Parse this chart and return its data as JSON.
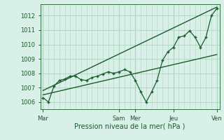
{
  "bg_color": "#d8f0e8",
  "plot_bg_color": "#d8f0e8",
  "grid_color": "#b0d4c4",
  "line_color": "#1a5c2a",
  "marker_color": "#1a5c2a",
  "xlabel": "Pression niveau de la mer( hPa )",
  "ylim": [
    1005.5,
    1012.8
  ],
  "yticks": [
    1006,
    1007,
    1008,
    1009,
    1010,
    1011,
    1012
  ],
  "day_labels": [
    "Mar",
    "Sam",
    "Mer",
    "Jeu",
    "Ven"
  ],
  "day_positions": [
    0,
    14,
    17,
    24,
    32
  ],
  "xlim": [
    -0.5,
    32.5
  ],
  "x_data": [
    0,
    1,
    2,
    3,
    4,
    5,
    6,
    7,
    8,
    9,
    10,
    11,
    12,
    13,
    14,
    15,
    16,
    17,
    18,
    19,
    20,
    21,
    22,
    23,
    24,
    25,
    26,
    27,
    28,
    29,
    30,
    31,
    32
  ],
  "y_forecast": [
    1006.3,
    1006.0,
    1007.1,
    1007.5,
    1007.6,
    1007.8,
    1007.8,
    1007.55,
    1007.5,
    1007.7,
    1007.8,
    1007.95,
    1008.1,
    1008.0,
    1008.1,
    1008.25,
    1008.1,
    1007.5,
    1006.7,
    1006.0,
    1006.7,
    1007.5,
    1008.9,
    1009.5,
    1009.8,
    1010.5,
    1010.6,
    1010.95,
    1010.5,
    1009.8,
    1010.5,
    1012.0,
    1012.5
  ],
  "trend1_x": [
    0,
    32
  ],
  "trend1_y": [
    1006.5,
    1009.3
  ],
  "trend2_x": [
    0,
    32
  ],
  "trend2_y": [
    1006.8,
    1012.6
  ]
}
